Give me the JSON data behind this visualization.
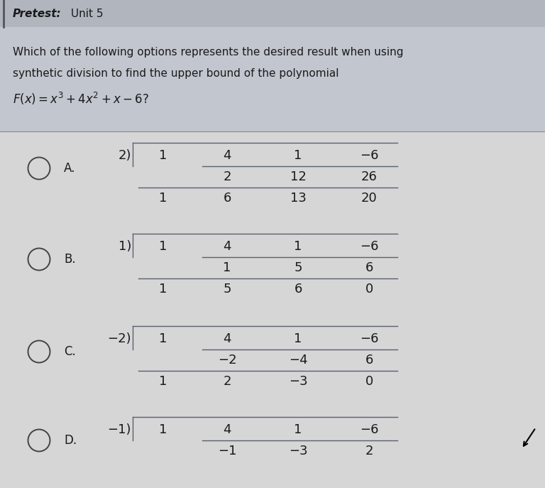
{
  "title_bold": "Pretest:",
  "title_normal": " Unit 5",
  "question_line1": "Which of the following options represents the desired result when using",
  "question_line2": "synthetic division to find the upper bound of the polynomial",
  "question_line3": "F(x) = x³ + 4x² + x − 6?",
  "bg_top": "#c8cbd2",
  "bg_bottom": "#d4d4d4",
  "text_color": "#1a1a1a",
  "line_color": "#5a6070",
  "options": [
    {
      "label": "A.",
      "divisor": "2)",
      "top": [
        "1",
        "4",
        "1",
        "−6"
      ],
      "mid": [
        "",
        "2",
        "12",
        "26"
      ],
      "bot": [
        "1",
        "6",
        "13",
        "20"
      ]
    },
    {
      "label": "B.",
      "divisor": "1)",
      "top": [
        "1",
        "4",
        "1",
        "−6"
      ],
      "mid": [
        "",
        "1",
        "5",
        "6"
      ],
      "bot": [
        "1",
        "5",
        "6",
        "0"
      ]
    },
    {
      "label": "C.",
      "divisor": "−2)",
      "top": [
        "1",
        "4",
        "1",
        "−6"
      ],
      "mid": [
        "",
        "−2",
        "−4",
        "6"
      ],
      "bot": [
        "1",
        "2",
        "−3",
        "0"
      ]
    },
    {
      "label": "D.",
      "divisor": "−1)",
      "top": [
        "1",
        "4",
        "1",
        "−6"
      ],
      "mid": [
        "",
        "−1",
        "−3",
        "2"
      ],
      "bot": null
    }
  ]
}
